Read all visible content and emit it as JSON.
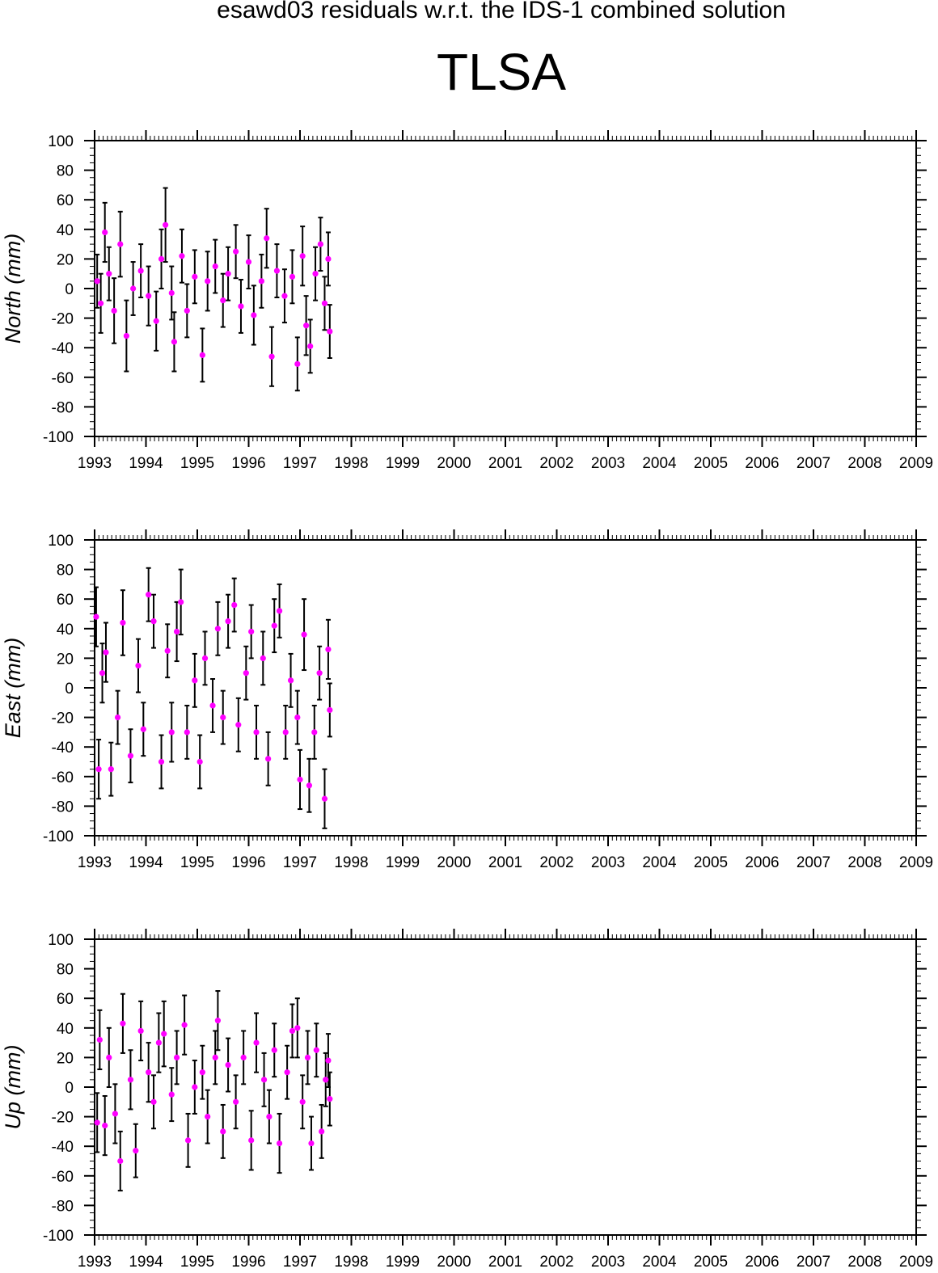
{
  "figure": {
    "subtitle": "esawd03 residuals w.r.t. the IDS-1 combined solution",
    "title": "TLSA"
  },
  "colors": {
    "points": "#ff00ff",
    "error_bars": "#000000",
    "axes": "#000000"
  },
  "chart_data": [
    {
      "type": "scatter",
      "ylabel": "North (mm)",
      "xlim": [
        1993,
        2009
      ],
      "ylim": [
        -100,
        100
      ],
      "x_ticks": [
        "1993",
        "1994",
        "1995",
        "1996",
        "1997",
        "1998",
        "1999",
        "2000",
        "2001",
        "2002",
        "2003",
        "2004",
        "2005",
        "2006",
        "2007",
        "2008",
        "2009"
      ],
      "y_ticks": [
        "100",
        "80",
        "60",
        "40",
        "20",
        "0",
        "-20",
        "-40",
        "-60",
        "-80",
        "-100"
      ],
      "series": [
        {
          "error_bars": true,
          "points": [
            {
              "x": 1993.05,
              "y": 5,
              "err": 18
            },
            {
              "x": 1993.12,
              "y": -10,
              "err": 20
            },
            {
              "x": 1993.2,
              "y": 38,
              "err": 20
            },
            {
              "x": 1993.28,
              "y": 10,
              "err": 18
            },
            {
              "x": 1993.38,
              "y": -15,
              "err": 22
            },
            {
              "x": 1993.5,
              "y": 30,
              "err": 22
            },
            {
              "x": 1993.62,
              "y": -32,
              "err": 24
            },
            {
              "x": 1993.75,
              "y": 0,
              "err": 18
            },
            {
              "x": 1993.9,
              "y": 12,
              "err": 18
            },
            {
              "x": 1994.05,
              "y": -5,
              "err": 20
            },
            {
              "x": 1994.2,
              "y": -22,
              "err": 20
            },
            {
              "x": 1994.3,
              "y": 20,
              "err": 20
            },
            {
              "x": 1994.38,
              "y": 43,
              "err": 25
            },
            {
              "x": 1994.5,
              "y": -3,
              "err": 18
            },
            {
              "x": 1994.55,
              "y": -36,
              "err": 20
            },
            {
              "x": 1994.7,
              "y": 22,
              "err": 18
            },
            {
              "x": 1994.8,
              "y": -15,
              "err": 18
            },
            {
              "x": 1994.95,
              "y": 8,
              "err": 18
            },
            {
              "x": 1995.1,
              "y": -45,
              "err": 18
            },
            {
              "x": 1995.2,
              "y": 5,
              "err": 20
            },
            {
              "x": 1995.35,
              "y": 15,
              "err": 18
            },
            {
              "x": 1995.5,
              "y": -8,
              "err": 18
            },
            {
              "x": 1995.6,
              "y": 10,
              "err": 18
            },
            {
              "x": 1995.75,
              "y": 25,
              "err": 18
            },
            {
              "x": 1995.85,
              "y": -12,
              "err": 18
            },
            {
              "x": 1996.0,
              "y": 18,
              "err": 18
            },
            {
              "x": 1996.1,
              "y": -18,
              "err": 20
            },
            {
              "x": 1996.25,
              "y": 5,
              "err": 18
            },
            {
              "x": 1996.35,
              "y": 34,
              "err": 20
            },
            {
              "x": 1996.45,
              "y": -46,
              "err": 20
            },
            {
              "x": 1996.55,
              "y": 12,
              "err": 18
            },
            {
              "x": 1996.7,
              "y": -5,
              "err": 18
            },
            {
              "x": 1996.85,
              "y": 8,
              "err": 18
            },
            {
              "x": 1996.95,
              "y": -51,
              "err": 18
            },
            {
              "x": 1997.05,
              "y": 22,
              "err": 20
            },
            {
              "x": 1997.12,
              "y": -25,
              "err": 20
            },
            {
              "x": 1997.2,
              "y": -39,
              "err": 18
            },
            {
              "x": 1997.3,
              "y": 10,
              "err": 18
            },
            {
              "x": 1997.4,
              "y": 30,
              "err": 18
            },
            {
              "x": 1997.48,
              "y": -10,
              "err": 18
            },
            {
              "x": 1997.55,
              "y": 20,
              "err": 18
            },
            {
              "x": 1997.58,
              "y": -29,
              "err": 18
            }
          ]
        }
      ]
    },
    {
      "type": "scatter",
      "ylabel": "East (mm)",
      "xlim": [
        1993,
        2009
      ],
      "ylim": [
        -100,
        100
      ],
      "x_ticks": [
        "1993",
        "1994",
        "1995",
        "1996",
        "1997",
        "1998",
        "1999",
        "2000",
        "2001",
        "2002",
        "2003",
        "2004",
        "2005",
        "2006",
        "2007",
        "2008",
        "2009"
      ],
      "y_ticks": [
        "100",
        "80",
        "60",
        "40",
        "20",
        "0",
        "-20",
        "-40",
        "-60",
        "-80",
        "-100"
      ],
      "series": [
        {
          "error_bars": true,
          "points": [
            {
              "x": 1993.03,
              "y": 48,
              "err": 20
            },
            {
              "x": 1993.08,
              "y": -55,
              "err": 20
            },
            {
              "x": 1993.15,
              "y": 10,
              "err": 20
            },
            {
              "x": 1993.22,
              "y": 24,
              "err": 20
            },
            {
              "x": 1993.32,
              "y": -55,
              "err": 18
            },
            {
              "x": 1993.45,
              "y": -20,
              "err": 18
            },
            {
              "x": 1993.55,
              "y": 44,
              "err": 22
            },
            {
              "x": 1993.7,
              "y": -46,
              "err": 18
            },
            {
              "x": 1993.85,
              "y": 15,
              "err": 18
            },
            {
              "x": 1993.95,
              "y": -28,
              "err": 18
            },
            {
              "x": 1994.05,
              "y": 63,
              "err": 18
            },
            {
              "x": 1994.15,
              "y": 45,
              "err": 18
            },
            {
              "x": 1994.3,
              "y": -50,
              "err": 18
            },
            {
              "x": 1994.42,
              "y": 25,
              "err": 18
            },
            {
              "x": 1994.5,
              "y": -30,
              "err": 20
            },
            {
              "x": 1994.6,
              "y": 38,
              "err": 20
            },
            {
              "x": 1994.68,
              "y": 58,
              "err": 22
            },
            {
              "x": 1994.8,
              "y": -30,
              "err": 18
            },
            {
              "x": 1994.95,
              "y": 5,
              "err": 18
            },
            {
              "x": 1995.05,
              "y": -50,
              "err": 18
            },
            {
              "x": 1995.15,
              "y": 20,
              "err": 18
            },
            {
              "x": 1995.3,
              "y": -12,
              "err": 18
            },
            {
              "x": 1995.4,
              "y": 40,
              "err": 18
            },
            {
              "x": 1995.5,
              "y": -20,
              "err": 18
            },
            {
              "x": 1995.6,
              "y": 45,
              "err": 18
            },
            {
              "x": 1995.72,
              "y": 56,
              "err": 18
            },
            {
              "x": 1995.8,
              "y": -25,
              "err": 18
            },
            {
              "x": 1995.95,
              "y": 10,
              "err": 18
            },
            {
              "x": 1996.05,
              "y": 38,
              "err": 18
            },
            {
              "x": 1996.15,
              "y": -30,
              "err": 18
            },
            {
              "x": 1996.28,
              "y": 20,
              "err": 18
            },
            {
              "x": 1996.38,
              "y": -48,
              "err": 18
            },
            {
              "x": 1996.5,
              "y": 42,
              "err": 18
            },
            {
              "x": 1996.6,
              "y": 52,
              "err": 18
            },
            {
              "x": 1996.72,
              "y": -30,
              "err": 18
            },
            {
              "x": 1996.82,
              "y": 5,
              "err": 18
            },
            {
              "x": 1996.95,
              "y": -20,
              "err": 18
            },
            {
              "x": 1997.0,
              "y": -62,
              "err": 20
            },
            {
              "x": 1997.08,
              "y": 36,
              "err": 24
            },
            {
              "x": 1997.18,
              "y": -66,
              "err": 18
            },
            {
              "x": 1997.28,
              "y": -30,
              "err": 18
            },
            {
              "x": 1997.38,
              "y": 10,
              "err": 18
            },
            {
              "x": 1997.48,
              "y": -75,
              "err": 20
            },
            {
              "x": 1997.55,
              "y": 26,
              "err": 20
            },
            {
              "x": 1997.58,
              "y": -15,
              "err": 18
            }
          ]
        }
      ]
    },
    {
      "type": "scatter",
      "ylabel": "Up (mm)",
      "xlim": [
        1993,
        2009
      ],
      "ylim": [
        -100,
        100
      ],
      "x_ticks": [
        "1993",
        "1994",
        "1995",
        "1996",
        "1997",
        "1998",
        "1999",
        "2000",
        "2001",
        "2002",
        "2003",
        "2004",
        "2005",
        "2006",
        "2007",
        "2008",
        "2009"
      ],
      "y_ticks": [
        "100",
        "80",
        "60",
        "40",
        "20",
        "0",
        "-20",
        "-40",
        "-60",
        "-80",
        "-100"
      ],
      "series": [
        {
          "error_bars": true,
          "points": [
            {
              "x": 1993.05,
              "y": -24,
              "err": 20
            },
            {
              "x": 1993.1,
              "y": 32,
              "err": 20
            },
            {
              "x": 1993.2,
              "y": -26,
              "err": 20
            },
            {
              "x": 1993.28,
              "y": 20,
              "err": 20
            },
            {
              "x": 1993.4,
              "y": -18,
              "err": 20
            },
            {
              "x": 1993.5,
              "y": -50,
              "err": 20
            },
            {
              "x": 1993.55,
              "y": 43,
              "err": 20
            },
            {
              "x": 1993.7,
              "y": 5,
              "err": 20
            },
            {
              "x": 1993.8,
              "y": -43,
              "err": 18
            },
            {
              "x": 1993.9,
              "y": 38,
              "err": 20
            },
            {
              "x": 1994.05,
              "y": 10,
              "err": 20
            },
            {
              "x": 1994.15,
              "y": -10,
              "err": 18
            },
            {
              "x": 1994.25,
              "y": 30,
              "err": 20
            },
            {
              "x": 1994.35,
              "y": 36,
              "err": 22
            },
            {
              "x": 1994.5,
              "y": -5,
              "err": 18
            },
            {
              "x": 1994.6,
              "y": 20,
              "err": 18
            },
            {
              "x": 1994.75,
              "y": 42,
              "err": 20
            },
            {
              "x": 1994.82,
              "y": -36,
              "err": 18
            },
            {
              "x": 1994.95,
              "y": 0,
              "err": 18
            },
            {
              "x": 1995.1,
              "y": 10,
              "err": 18
            },
            {
              "x": 1995.2,
              "y": -20,
              "err": 18
            },
            {
              "x": 1995.35,
              "y": 20,
              "err": 18
            },
            {
              "x": 1995.4,
              "y": 45,
              "err": 20
            },
            {
              "x": 1995.5,
              "y": -30,
              "err": 18
            },
            {
              "x": 1995.6,
              "y": 15,
              "err": 18
            },
            {
              "x": 1995.75,
              "y": -10,
              "err": 18
            },
            {
              "x": 1995.9,
              "y": 20,
              "err": 18
            },
            {
              "x": 1996.05,
              "y": -36,
              "err": 20
            },
            {
              "x": 1996.15,
              "y": 30,
              "err": 20
            },
            {
              "x": 1996.3,
              "y": 5,
              "err": 18
            },
            {
              "x": 1996.4,
              "y": -20,
              "err": 18
            },
            {
              "x": 1996.5,
              "y": 25,
              "err": 18
            },
            {
              "x": 1996.6,
              "y": -38,
              "err": 20
            },
            {
              "x": 1996.75,
              "y": 10,
              "err": 18
            },
            {
              "x": 1996.85,
              "y": 38,
              "err": 18
            },
            {
              "x": 1996.95,
              "y": 40,
              "err": 20
            },
            {
              "x": 1997.05,
              "y": -10,
              "err": 18
            },
            {
              "x": 1997.15,
              "y": 20,
              "err": 18
            },
            {
              "x": 1997.22,
              "y": -38,
              "err": 18
            },
            {
              "x": 1997.32,
              "y": 25,
              "err": 18
            },
            {
              "x": 1997.42,
              "y": -30,
              "err": 18
            },
            {
              "x": 1997.5,
              "y": 5,
              "err": 18
            },
            {
              "x": 1997.55,
              "y": 18,
              "err": 18
            },
            {
              "x": 1997.58,
              "y": -8,
              "err": 18
            }
          ]
        }
      ]
    }
  ]
}
